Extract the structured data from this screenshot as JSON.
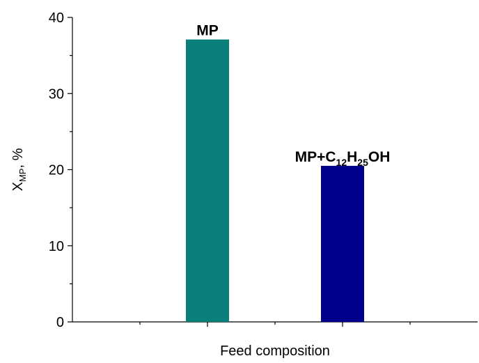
{
  "chart_data": {
    "type": "bar",
    "categories": [
      "MP",
      "MP+C12H25OH"
    ],
    "values": [
      37.1,
      20.5
    ],
    "colors": [
      "#0a7f7a",
      "#00008b"
    ],
    "bar_labels": [
      [
        {
          "t": "MP"
        }
      ],
      [
        {
          "t": "MP+C"
        },
        {
          "t": "12",
          "sub": true
        },
        {
          "t": "H"
        },
        {
          "t": "25",
          "sub": true
        },
        {
          "t": "OH"
        }
      ]
    ],
    "xlabel": "Feed composition",
    "ylabel": {
      "main": "X",
      "sub": "MP",
      "suffix": ", %"
    },
    "ylim": [
      0,
      40
    ],
    "yticks": [
      0,
      10,
      20,
      30,
      40
    ],
    "minor_step": 5,
    "grid": false
  }
}
